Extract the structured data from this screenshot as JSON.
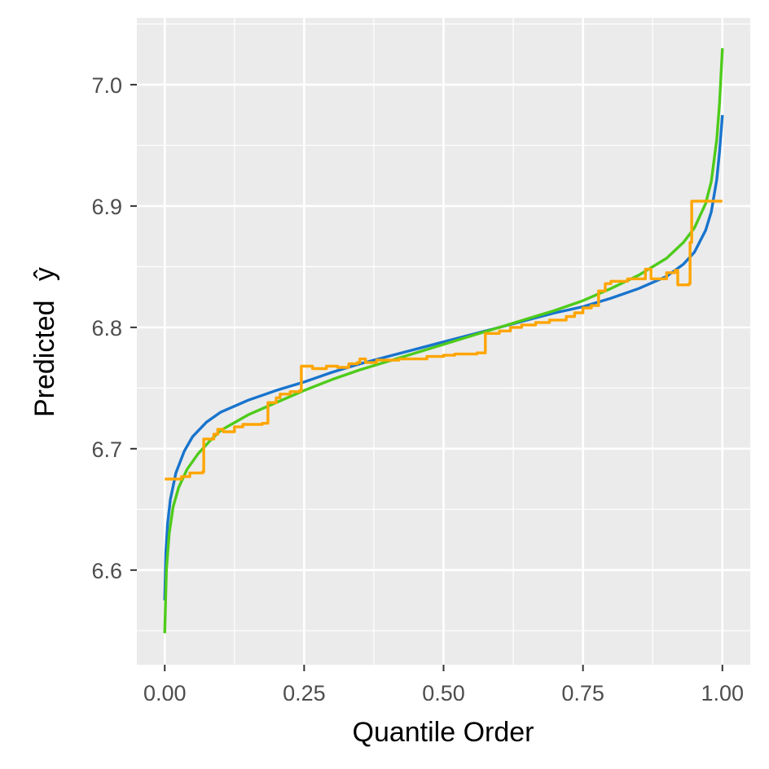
{
  "chart_data": {
    "type": "line",
    "title": "",
    "xlabel": "Quantile Order",
    "ylabel": "Predicted",
    "ylabel_symbol": "ŷ",
    "xlim": [
      -0.05,
      1.05
    ],
    "ylim": [
      6.522,
      7.055
    ],
    "x_ticks": [
      0.0,
      0.25,
      0.5,
      0.75,
      1.0
    ],
    "x_tick_labels": [
      "0.00",
      "0.25",
      "0.50",
      "0.75",
      "1.00"
    ],
    "y_ticks": [
      6.6,
      6.7,
      6.8,
      6.9,
      7.0
    ],
    "y_tick_labels": [
      "6.6",
      "6.7",
      "6.8",
      "6.9",
      "7.0"
    ],
    "grid": true,
    "background": "#ebebeb",
    "series": [
      {
        "color": "#1874cd",
        "step": false,
        "points": [
          [
            0.0,
            6.575
          ],
          [
            0.002,
            6.615
          ],
          [
            0.005,
            6.638
          ],
          [
            0.01,
            6.658
          ],
          [
            0.02,
            6.68
          ],
          [
            0.035,
            6.698
          ],
          [
            0.05,
            6.71
          ],
          [
            0.075,
            6.722
          ],
          [
            0.1,
            6.73
          ],
          [
            0.15,
            6.74
          ],
          [
            0.2,
            6.748
          ],
          [
            0.25,
            6.755
          ],
          [
            0.3,
            6.763
          ],
          [
            0.35,
            6.77
          ],
          [
            0.4,
            6.776
          ],
          [
            0.45,
            6.782
          ],
          [
            0.5,
            6.788
          ],
          [
            0.55,
            6.794
          ],
          [
            0.6,
            6.8
          ],
          [
            0.65,
            6.806
          ],
          [
            0.7,
            6.812
          ],
          [
            0.75,
            6.817
          ],
          [
            0.8,
            6.824
          ],
          [
            0.85,
            6.832
          ],
          [
            0.9,
            6.842
          ],
          [
            0.93,
            6.852
          ],
          [
            0.95,
            6.862
          ],
          [
            0.97,
            6.88
          ],
          [
            0.98,
            6.895
          ],
          [
            0.99,
            6.922
          ],
          [
            0.995,
            6.945
          ],
          [
            1.0,
            6.975
          ]
        ]
      },
      {
        "color": "#4ecb1a",
        "step": false,
        "points": [
          [
            0.0,
            6.548
          ],
          [
            0.003,
            6.6
          ],
          [
            0.008,
            6.63
          ],
          [
            0.015,
            6.652
          ],
          [
            0.025,
            6.668
          ],
          [
            0.04,
            6.683
          ],
          [
            0.06,
            6.696
          ],
          [
            0.08,
            6.706
          ],
          [
            0.1,
            6.715
          ],
          [
            0.15,
            6.728
          ],
          [
            0.2,
            6.738
          ],
          [
            0.25,
            6.748
          ],
          [
            0.3,
            6.757
          ],
          [
            0.35,
            6.765
          ],
          [
            0.4,
            6.772
          ],
          [
            0.45,
            6.779
          ],
          [
            0.5,
            6.786
          ],
          [
            0.55,
            6.793
          ],
          [
            0.6,
            6.8
          ],
          [
            0.65,
            6.807
          ],
          [
            0.7,
            6.814
          ],
          [
            0.75,
            6.822
          ],
          [
            0.8,
            6.832
          ],
          [
            0.85,
            6.843
          ],
          [
            0.9,
            6.857
          ],
          [
            0.93,
            6.87
          ],
          [
            0.95,
            6.882
          ],
          [
            0.97,
            6.902
          ],
          [
            0.98,
            6.92
          ],
          [
            0.99,
            6.955
          ],
          [
            0.995,
            6.985
          ],
          [
            1.0,
            7.03
          ]
        ]
      },
      {
        "color": "#ffa500",
        "step": true,
        "points": [
          [
            0.0,
            6.675
          ],
          [
            0.03,
            6.677
          ],
          [
            0.045,
            6.68
          ],
          [
            0.068,
            6.681
          ],
          [
            0.07,
            6.708
          ],
          [
            0.088,
            6.712
          ],
          [
            0.095,
            6.716
          ],
          [
            0.105,
            6.714
          ],
          [
            0.125,
            6.718
          ],
          [
            0.14,
            6.72
          ],
          [
            0.175,
            6.721
          ],
          [
            0.185,
            6.738
          ],
          [
            0.2,
            6.742
          ],
          [
            0.207,
            6.745
          ],
          [
            0.225,
            6.747
          ],
          [
            0.242,
            6.748
          ],
          [
            0.245,
            6.768
          ],
          [
            0.265,
            6.766
          ],
          [
            0.29,
            6.768
          ],
          [
            0.31,
            6.767
          ],
          [
            0.33,
            6.77
          ],
          [
            0.345,
            6.771
          ],
          [
            0.35,
            6.774
          ],
          [
            0.36,
            6.771
          ],
          [
            0.38,
            6.773
          ],
          [
            0.42,
            6.774
          ],
          [
            0.47,
            6.776
          ],
          [
            0.5,
            6.777
          ],
          [
            0.52,
            6.778
          ],
          [
            0.56,
            6.779
          ],
          [
            0.575,
            6.795
          ],
          [
            0.6,
            6.797
          ],
          [
            0.62,
            6.8
          ],
          [
            0.64,
            6.802
          ],
          [
            0.665,
            6.804
          ],
          [
            0.69,
            6.806
          ],
          [
            0.72,
            6.809
          ],
          [
            0.735,
            6.812
          ],
          [
            0.75,
            6.816
          ],
          [
            0.765,
            6.818
          ],
          [
            0.778,
            6.83
          ],
          [
            0.79,
            6.836
          ],
          [
            0.8,
            6.838
          ],
          [
            0.83,
            6.84
          ],
          [
            0.862,
            6.848
          ],
          [
            0.872,
            6.84
          ],
          [
            0.9,
            6.845
          ],
          [
            0.915,
            6.847
          ],
          [
            0.92,
            6.835
          ],
          [
            0.94,
            6.836
          ],
          [
            0.942,
            6.87
          ],
          [
            0.945,
            6.904
          ],
          [
            0.965,
            6.904
          ],
          [
            1.0,
            6.904
          ]
        ]
      }
    ]
  }
}
